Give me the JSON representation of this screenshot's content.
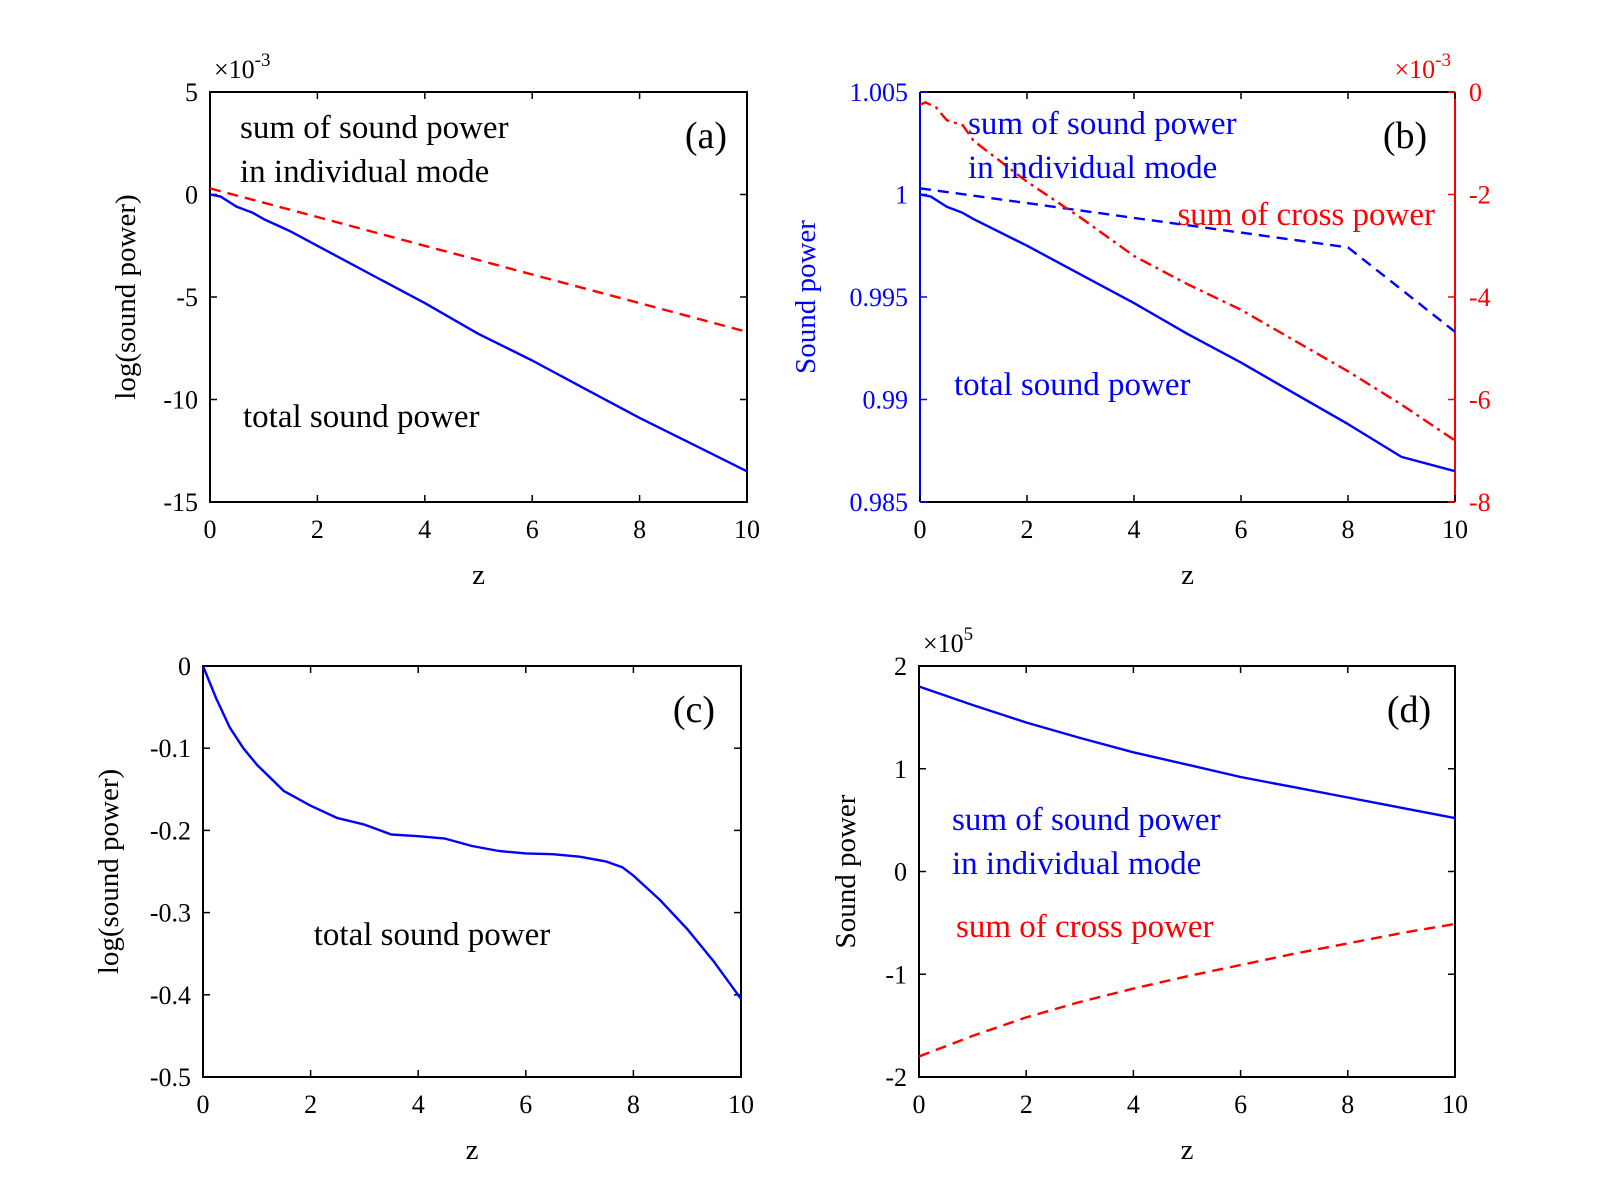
{
  "chart_data": [
    {
      "panel": "a",
      "type": "line",
      "panel_label": "(a)",
      "xlabel": "z",
      "ylabel": "log(sound power)",
      "xlim": [
        0,
        10
      ],
      "ylim": [
        -15,
        5
      ],
      "xticks": [
        "0",
        "2",
        "4",
        "6",
        "8",
        "10"
      ],
      "yticks": [
        "5",
        "0",
        "-5",
        "-10",
        "-15"
      ],
      "y_exponent": "-3",
      "grid": false,
      "annotations": [
        {
          "text": "sum of sound power",
          "color": "#000000"
        },
        {
          "text": "in individual mode",
          "color": "#000000"
        },
        {
          "text": "total sound power",
          "color": "#000000"
        }
      ],
      "series": [
        {
          "name": "sum of sound power in individual mode",
          "style": "dashed",
          "color": "#ff0000",
          "x": [
            0,
            1,
            2,
            3,
            4,
            5,
            6,
            7,
            8,
            9,
            10
          ],
          "y": [
            0.3,
            -0.4,
            -1.1,
            -1.8,
            -2.5,
            -3.2,
            -3.9,
            -4.6,
            -5.3,
            -6.0,
            -6.7
          ]
        },
        {
          "name": "total sound power",
          "style": "solid",
          "color": "#0000ff",
          "x": [
            0,
            0.2,
            0.5,
            0.8,
            1,
            1.5,
            2,
            3,
            4,
            5,
            6,
            7,
            8,
            9,
            10
          ],
          "y": [
            0,
            -0.1,
            -0.6,
            -0.9,
            -1.2,
            -1.8,
            -2.5,
            -3.9,
            -5.3,
            -6.8,
            -8.1,
            -9.5,
            -10.9,
            -12.2,
            -13.5
          ]
        }
      ]
    },
    {
      "panel": "b",
      "type": "line",
      "panel_label": "(b)",
      "xlabel": "z",
      "ylabel": "Sound power",
      "xlim": [
        0,
        10
      ],
      "ylim": [
        0.985,
        1.005
      ],
      "y2lim": [
        -8,
        0
      ],
      "xticks": [
        "0",
        "2",
        "4",
        "6",
        "8",
        "10"
      ],
      "yticks": [
        "1.005",
        "1",
        "0.995",
        "0.99",
        "0.985"
      ],
      "y2ticks": [
        "0",
        "-2",
        "-4",
        "-6",
        "-8"
      ],
      "y2_exponent": "-3",
      "grid": false,
      "annotations": [
        {
          "text": "sum of sound power",
          "color": "#0000ff"
        },
        {
          "text": "in individual mode",
          "color": "#0000ff"
        },
        {
          "text": "sum of cross power",
          "color": "#ff0000"
        },
        {
          "text": "total sound power",
          "color": "#0000ff"
        }
      ],
      "series": [
        {
          "name": "sum of sound power in individual mode",
          "axis": "left",
          "style": "dashed",
          "color": "#0000ff",
          "x": [
            0,
            2,
            4,
            6,
            8,
            10
          ],
          "y": [
            1.0003,
            0.99958,
            0.99886,
            0.99814,
            0.99742,
            0.9933
          ]
        },
        {
          "name": "total sound power",
          "axis": "left",
          "style": "solid",
          "color": "#0000ff",
          "x": [
            0,
            0.2,
            0.5,
            0.8,
            1,
            2,
            3,
            4,
            5,
            6,
            7,
            8,
            9,
            10
          ],
          "y": [
            1.0,
            0.9999,
            0.9994,
            0.9991,
            0.9988,
            0.9975,
            0.9961,
            0.9947,
            0.9932,
            0.9918,
            0.9903,
            0.9888,
            0.9872,
            0.9865
          ]
        },
        {
          "name": "sum of cross power",
          "axis": "right",
          "style": "dashdot",
          "color": "#ff0000",
          "x": [
            0,
            0.1,
            0.3,
            0.5,
            0.8,
            1,
            2,
            3,
            4,
            5,
            6,
            7,
            8,
            9,
            10
          ],
          "y": [
            -0.25,
            -0.2,
            -0.3,
            -0.55,
            -0.65,
            -0.95,
            -1.75,
            -2.45,
            -3.2,
            -3.75,
            -4.25,
            -4.85,
            -5.45,
            -6.1,
            -6.8
          ]
        }
      ]
    },
    {
      "panel": "c",
      "type": "line",
      "panel_label": "(c)",
      "xlabel": "z",
      "ylabel": "log(sound power)",
      "xlim": [
        0,
        10
      ],
      "ylim": [
        -0.5,
        0
      ],
      "xticks": [
        "0",
        "2",
        "4",
        "6",
        "8",
        "10"
      ],
      "yticks": [
        "0",
        "-0.1",
        "-0.2",
        "-0.3",
        "-0.4",
        "-0.5"
      ],
      "grid": false,
      "annotations": [
        {
          "text": "total sound power",
          "color": "#000000"
        }
      ],
      "series": [
        {
          "name": "total sound power",
          "style": "solid",
          "color": "#0000ff",
          "x": [
            0,
            0.25,
            0.5,
            0.75,
            1,
            1.5,
            2,
            2.5,
            3,
            3.5,
            4,
            4.5,
            5,
            5.5,
            6,
            6.5,
            7,
            7.5,
            7.8,
            8,
            8.5,
            9,
            9.5,
            10
          ],
          "y": [
            0,
            -0.04,
            -0.075,
            -0.1,
            -0.12,
            -0.152,
            -0.17,
            -0.185,
            -0.193,
            -0.205,
            -0.207,
            -0.21,
            -0.219,
            -0.225,
            -0.228,
            -0.229,
            -0.232,
            -0.238,
            -0.245,
            -0.255,
            -0.285,
            -0.32,
            -0.36,
            -0.405
          ]
        }
      ]
    },
    {
      "panel": "d",
      "type": "line",
      "panel_label": "(d)",
      "xlabel": "z",
      "ylabel": "Sound power",
      "xlim": [
        0,
        10
      ],
      "ylim": [
        -2,
        2
      ],
      "xticks": [
        "0",
        "2",
        "4",
        "6",
        "8",
        "10"
      ],
      "yticks": [
        "2",
        "1",
        "0",
        "-1",
        "-2"
      ],
      "y_exponent": "5",
      "grid": false,
      "annotations": [
        {
          "text": "sum of sound power",
          "color": "#0000ff"
        },
        {
          "text": "in individual mode",
          "color": "#0000ff"
        },
        {
          "text": "sum of cross power",
          "color": "#ff0000"
        }
      ],
      "series": [
        {
          "name": "sum of sound power in individual mode",
          "style": "solid",
          "color": "#0000ff",
          "x": [
            0,
            1,
            2,
            3,
            4,
            5,
            6,
            7,
            8,
            9,
            10
          ],
          "y": [
            1.8,
            1.62,
            1.45,
            1.3,
            1.16,
            1.04,
            0.92,
            0.82,
            0.72,
            0.62,
            0.52
          ]
        },
        {
          "name": "sum of cross power",
          "style": "dashed",
          "color": "#ff0000",
          "x": [
            0,
            1,
            2,
            3,
            4,
            5,
            6,
            7,
            8,
            9,
            10
          ],
          "y": [
            -1.8,
            -1.6,
            -1.42,
            -1.27,
            -1.14,
            -1.02,
            -0.91,
            -0.8,
            -0.7,
            -0.6,
            -0.51
          ]
        }
      ]
    }
  ]
}
